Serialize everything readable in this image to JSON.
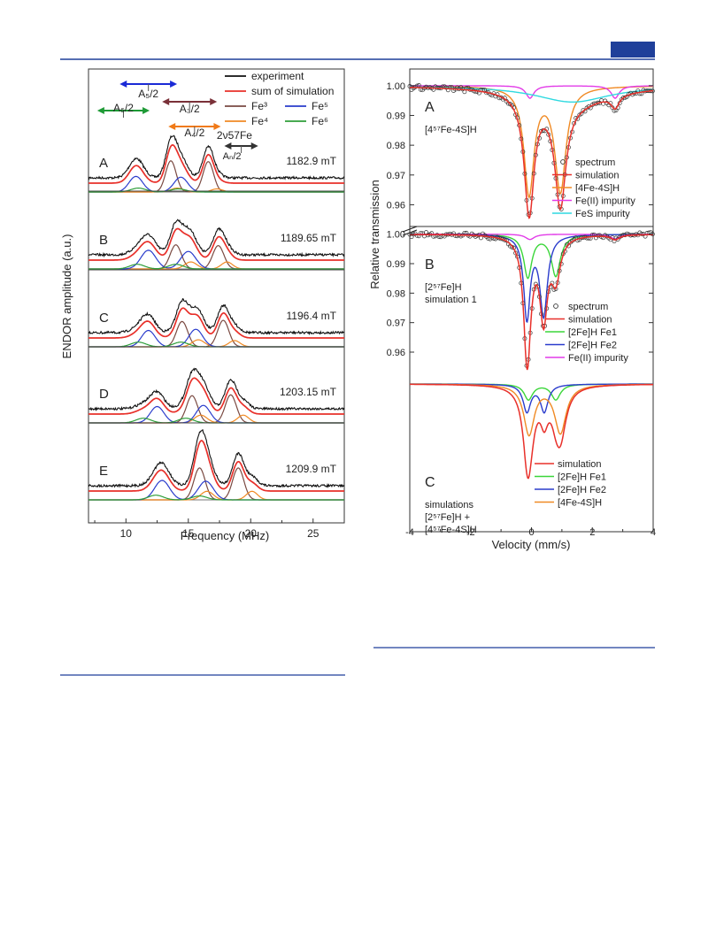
{
  "page": {
    "header_accent": "#1f3f9a",
    "rule_color": "#1f3f9a"
  },
  "chart_data": [
    {
      "type": "line",
      "panel": "left",
      "xlabel": "Frequency (MHz)",
      "ylabel": "ENDOR amplitude (a.u.)",
      "xlim": [
        7,
        27.5
      ],
      "x_ticks": [
        10,
        15,
        20,
        25
      ],
      "grid": false,
      "legend": {
        "placement": "top-right",
        "items": [
          {
            "label": "experiment",
            "color": "#111111"
          },
          {
            "label": "sum of simulation",
            "color": "#e8302a"
          },
          {
            "label": "Fe³",
            "color": "#7a4a42"
          },
          {
            "label": "Fe⁴",
            "color": "#f08a24"
          },
          {
            "label": "Fe⁵",
            "color": "#2a3ccc"
          },
          {
            "label": "Fe⁶",
            "color": "#2e9e3a"
          }
        ]
      },
      "annotations": {
        "a_arrows": [
          {
            "label": "A₅/2",
            "color": "#1a2ad6",
            "x_from": 9.5,
            "x_to": 14.1
          },
          {
            "label": "A₃/2",
            "color": "#7a3038",
            "x_from": 12.9,
            "x_to": 17.3
          },
          {
            "label": "A₆/2",
            "color": "#1e9a36",
            "x_from": 7.7,
            "x_to": 11.9
          },
          {
            "label": "A₄/2",
            "color": "#f07a18",
            "x_from": 13.4,
            "x_to": 17.6
          }
        ],
        "larmor_label_top": "2ν57Fe",
        "larmor_label_bottom": "Aₙ/2"
      },
      "series_colors": {
        "experiment": "#111111",
        "sum": "#e8302a",
        "fe3": "#7a4a42",
        "fe4": "#f08a24",
        "fe5": "#2a3ccc",
        "fe6": "#2e9e3a",
        "baseline": "#777777"
      },
      "spectra": [
        {
          "label": "A",
          "field": "1182.9 mT",
          "components": {
            "fe3": [
              [
                13.6,
                0.8,
                0.42
              ],
              [
                16.6,
                0.78,
                0.42
              ]
            ],
            "fe4": [
              [
                14.1,
                0.1,
                0.5
              ],
              [
                17.3,
                0.08,
                0.45
              ]
            ],
            "fe5": [
              [
                10.8,
                0.4,
                0.55
              ],
              [
                14.4,
                0.38,
                0.55
              ]
            ],
            "fe6": [
              [
                11.0,
                0.1,
                0.6
              ],
              [
                14.2,
                0.08,
                0.6
              ]
            ]
          }
        },
        {
          "label": "B",
          "field": "1189.65 mT",
          "components": {
            "fe3": [
              [
                14.0,
                0.62,
                0.45
              ],
              [
                17.4,
                0.6,
                0.45
              ]
            ],
            "fe4": [
              [
                15.2,
                0.18,
                0.5
              ],
              [
                18.1,
                0.18,
                0.45
              ]
            ],
            "fe5": [
              [
                11.8,
                0.48,
                0.6
              ],
              [
                15.0,
                0.45,
                0.6
              ]
            ],
            "fe6": [
              [
                10.9,
                0.12,
                0.6
              ],
              [
                14.0,
                0.12,
                0.6
              ]
            ]
          }
        },
        {
          "label": "C",
          "field": "1196.4 mT",
          "components": {
            "fe3": [
              [
                14.5,
                0.65,
                0.45
              ],
              [
                17.8,
                0.68,
                0.45
              ]
            ],
            "fe4": [
              [
                15.8,
                0.18,
                0.5
              ],
              [
                18.7,
                0.16,
                0.45
              ]
            ],
            "fe5": [
              [
                11.8,
                0.42,
                0.55
              ],
              [
                15.6,
                0.45,
                0.55
              ]
            ],
            "fe6": [
              [
                11.0,
                0.12,
                0.6
              ],
              [
                14.4,
                0.12,
                0.6
              ]
            ]
          }
        },
        {
          "label": "D",
          "field": "1203.15 mT",
          "components": {
            "fe3": [
              [
                15.3,
                0.7,
                0.45
              ],
              [
                18.4,
                0.72,
                0.45
              ]
            ],
            "fe4": [
              [
                16.0,
                0.2,
                0.5
              ],
              [
                19.4,
                0.2,
                0.45
              ]
            ],
            "fe5": [
              [
                12.5,
                0.42,
                0.55
              ],
              [
                16.2,
                0.45,
                0.55
              ]
            ],
            "fe6": [
              [
                11.4,
                0.12,
                0.6
              ],
              [
                14.8,
                0.12,
                0.6
              ]
            ]
          }
        },
        {
          "label": "E",
          "field": "1209.9 mT",
          "components": {
            "fe3": [
              [
                15.9,
                0.82,
                0.45
              ],
              [
                19.0,
                0.82,
                0.45
              ]
            ],
            "fe4": [
              [
                16.5,
                0.22,
                0.5
              ],
              [
                20.1,
                0.22,
                0.45
              ]
            ],
            "fe5": [
              [
                12.9,
                0.5,
                0.6
              ],
              [
                16.4,
                0.48,
                0.6
              ]
            ],
            "fe6": [
              [
                12.4,
                0.12,
                0.6
              ],
              [
                15.9,
                0.1,
                0.6
              ]
            ]
          }
        }
      ]
    },
    {
      "type": "line",
      "panel": "right",
      "xlabel": "Velocity (mm/s)",
      "ylabel": "Relative transmission",
      "xlim": [
        -4,
        4
      ],
      "x_ticks": [
        -4,
        -2,
        0,
        2,
        4
      ],
      "grid": false,
      "panels": [
        {
          "label": "A",
          "title": "[4⁵⁷Fe-4S]H",
          "ylim": [
            0.953,
            1.005
          ],
          "y_ticks": [
            1.0,
            0.99,
            0.98,
            0.97,
            0.96
          ],
          "y_tick_labels": [
            "1.00",
            "0.99",
            "0.98",
            "0.97",
            "0.96"
          ],
          "legend": [
            {
              "label": "spectrum",
              "kind": "marker",
              "color": "#333333"
            },
            {
              "label": "simulation",
              "color": "#e8302a"
            },
            {
              "label": "[4Fe-4S]H",
              "color": "#f08a24"
            },
            {
              "label": "Fe(II) impurity",
              "color": "#e23ce8"
            },
            {
              "label": "FeS impurity",
              "color": "#2fd9e0"
            }
          ],
          "components": [
            {
              "name": "[4Fe-4S]H",
              "color": "#f08a24",
              "lines": [
                [
                  -0.08,
                  0.036,
                  0.2
                ],
                [
                  0.95,
                  0.035,
                  0.22
                ]
              ]
            },
            {
              "name": "Fe(II) impurity",
              "color": "#e23ce8",
              "lines": [
                [
                  -0.05,
                  0.0042,
                  0.16
                ],
                [
                  2.75,
                  0.0042,
                  0.16
                ]
              ]
            },
            {
              "name": "FeS impurity",
              "color": "#2fd9e0",
              "lines": [
                [
                  1.35,
                  0.0055,
                  1.5
                ]
              ]
            }
          ],
          "show_sum": true,
          "show_spectrum": true
        },
        {
          "label": "B",
          "title": "[2⁵⁷Fe]H",
          "subtitle": "simulation 1",
          "ylim": [
            0.951,
            1.002
          ],
          "y_ticks": [
            1.0,
            0.99,
            0.98,
            0.97,
            0.96
          ],
          "y_tick_labels": [
            "1.00",
            "0.99",
            "0.98",
            "0.97",
            "0.96"
          ],
          "legend": [
            {
              "label": "spectrum",
              "kind": "marker",
              "color": "#333333"
            },
            {
              "label": "simulation",
              "color": "#e8302a"
            },
            {
              "label": "[2Fe]H Fe1",
              "color": "#3bd63a"
            },
            {
              "label": "[2Fe]H Fe2",
              "color": "#2a3ccc"
            },
            {
              "label": "Fe(II) impurity",
              "color": "#e23ce8"
            }
          ],
          "components": [
            {
              "name": "[2Fe]H Fe1",
              "color": "#3bd63a",
              "lines": [
                [
                  -0.12,
                  0.0145,
                  0.16
                ],
                [
                  0.8,
                  0.014,
                  0.18
                ]
              ]
            },
            {
              "name": "[2Fe]H Fe2",
              "color": "#2a3ccc",
              "lines": [
                [
                  -0.15,
                  0.028,
                  0.13
                ],
                [
                  0.4,
                  0.027,
                  0.15
                ]
              ]
            },
            {
              "name": "Fe(II) impurity",
              "color": "#e23ce8",
              "lines": [
                [
                  -0.05,
                  0.0018,
                  0.18
                ],
                [
                  2.75,
                  0.0016,
                  0.18
                ]
              ]
            }
          ],
          "show_sum": true,
          "show_spectrum": true
        },
        {
          "label": "C",
          "title": "simulations",
          "subtitle": "[2⁵⁷Fe]H +",
          "subtitle2": "[4⁵⁷Fe-4S]H",
          "ylim": [
            0.0,
            1.0
          ],
          "legend": [
            {
              "label": "simulation",
              "color": "#e8302a"
            },
            {
              "label": "[2Fe]H Fe1",
              "color": "#3bd63a"
            },
            {
              "label": "[2Fe]H Fe2",
              "color": "#2a3ccc"
            },
            {
              "label": "[4Fe-4S]H",
              "color": "#f08a24"
            }
          ],
          "components": [
            {
              "name": "[2Fe]H Fe1",
              "color": "#3bd63a",
              "lines": [
                [
                  -0.1,
                  0.08,
                  0.17
                ],
                [
                  0.8,
                  0.08,
                  0.18
                ]
              ]
            },
            {
              "name": "[2Fe]H Fe2",
              "color": "#2a3ccc",
              "lines": [
                [
                  -0.15,
                  0.14,
                  0.15
                ],
                [
                  0.42,
                  0.14,
                  0.15
                ]
              ]
            },
            {
              "name": "[4Fe-4S]H",
              "color": "#f08a24",
              "lines": [
                [
                  -0.08,
                  0.255,
                  0.21
                ],
                [
                  0.95,
                  0.248,
                  0.23
                ]
              ]
            }
          ],
          "show_sum": true,
          "show_spectrum": false
        }
      ],
      "axis_break": true
    }
  ]
}
